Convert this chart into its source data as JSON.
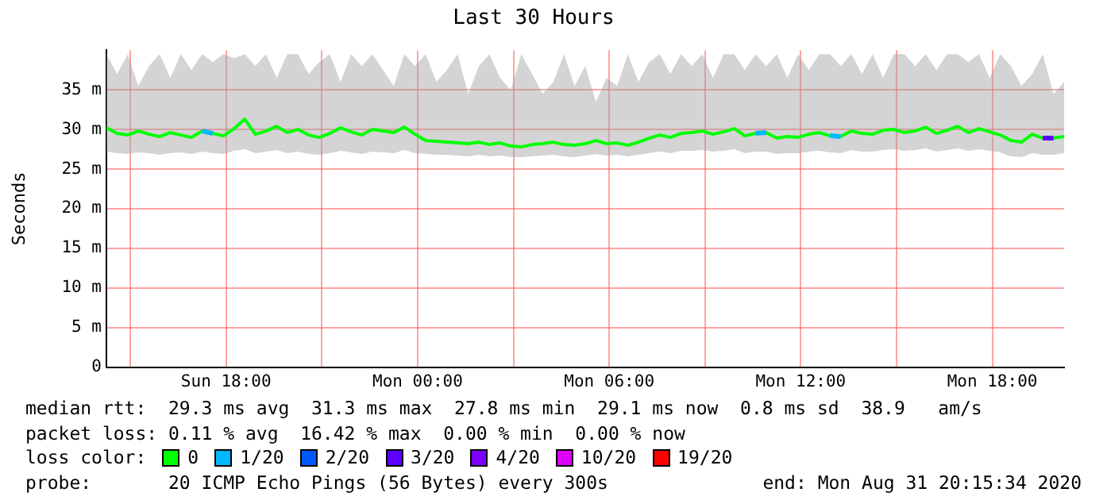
{
  "chart_data": {
    "type": "line",
    "title": "Last 30 Hours",
    "ylabel": "Seconds",
    "legend_title": "loss color:",
    "legend": "bottom",
    "grid": true,
    "marker": "none",
    "line_style": "solid",
    "ylim": [
      0,
      40
    ],
    "yticks": [
      {
        "value": 0,
        "label": "0"
      },
      {
        "value": 5,
        "label": "5 m"
      },
      {
        "value": 10,
        "label": "10 m"
      },
      {
        "value": 15,
        "label": "15 m"
      },
      {
        "value": 20,
        "label": "20 m"
      },
      {
        "value": 25,
        "label": "25 m"
      },
      {
        "value": 30,
        "label": "30 m"
      },
      {
        "value": 35,
        "label": "35 m"
      }
    ],
    "xlim": [
      "2020-08-30T14:15",
      "2020-08-31T20:15"
    ],
    "xticks": [
      {
        "value": "2020-08-30T15:00",
        "label": null
      },
      {
        "value": "2020-08-30T18:00",
        "label": "Sun 18:00"
      },
      {
        "value": "2020-08-30T21:00",
        "label": null
      },
      {
        "value": "2020-08-31T00:00",
        "label": "Mon 00:00"
      },
      {
        "value": "2020-08-31T03:00",
        "label": null
      },
      {
        "value": "2020-08-31T06:00",
        "label": "Mon 06:00"
      },
      {
        "value": "2020-08-31T09:00",
        "label": null
      },
      {
        "value": "2020-08-31T12:00",
        "label": "Mon 12:00"
      },
      {
        "value": "2020-08-31T15:00",
        "label": null
      },
      {
        "value": "2020-08-31T18:00",
        "label": "Mon 18:00"
      }
    ],
    "x": [
      "2020-08-30T14:15",
      "2020-08-30T14:35",
      "2020-08-30T14:55",
      "2020-08-30T15:15",
      "2020-08-30T15:35",
      "2020-08-30T15:55",
      "2020-08-30T16:15",
      "2020-08-30T16:35",
      "2020-08-30T16:55",
      "2020-08-30T17:15",
      "2020-08-30T17:35",
      "2020-08-30T17:55",
      "2020-08-30T18:15",
      "2020-08-30T18:35",
      "2020-08-30T18:55",
      "2020-08-30T19:15",
      "2020-08-30T19:35",
      "2020-08-30T19:55",
      "2020-08-30T20:15",
      "2020-08-30T20:35",
      "2020-08-30T20:55",
      "2020-08-30T21:15",
      "2020-08-30T21:35",
      "2020-08-30T21:55",
      "2020-08-30T22:15",
      "2020-08-30T22:35",
      "2020-08-30T22:55",
      "2020-08-30T23:15",
      "2020-08-30T23:35",
      "2020-08-30T23:55",
      "2020-08-31T00:15",
      "2020-08-31T00:35",
      "2020-08-31T00:55",
      "2020-08-31T01:15",
      "2020-08-31T01:35",
      "2020-08-31T01:55",
      "2020-08-31T02:15",
      "2020-08-31T02:35",
      "2020-08-31T02:55",
      "2020-08-31T03:15",
      "2020-08-31T03:35",
      "2020-08-31T03:55",
      "2020-08-31T04:15",
      "2020-08-31T04:35",
      "2020-08-31T04:55",
      "2020-08-31T05:15",
      "2020-08-31T05:35",
      "2020-08-31T05:55",
      "2020-08-31T06:15",
      "2020-08-31T06:35",
      "2020-08-31T06:55",
      "2020-08-31T07:15",
      "2020-08-31T07:35",
      "2020-08-31T07:55",
      "2020-08-31T08:15",
      "2020-08-31T08:35",
      "2020-08-31T08:55",
      "2020-08-31T09:15",
      "2020-08-31T09:35",
      "2020-08-31T09:55",
      "2020-08-31T10:15",
      "2020-08-31T10:35",
      "2020-08-31T10:55",
      "2020-08-31T11:15",
      "2020-08-31T11:35",
      "2020-08-31T11:55",
      "2020-08-31T12:15",
      "2020-08-31T12:35",
      "2020-08-31T12:55",
      "2020-08-31T13:15",
      "2020-08-31T13:35",
      "2020-08-31T13:55",
      "2020-08-31T14:15",
      "2020-08-31T14:35",
      "2020-08-31T14:55",
      "2020-08-31T15:15",
      "2020-08-31T15:35",
      "2020-08-31T15:55",
      "2020-08-31T16:15",
      "2020-08-31T16:35",
      "2020-08-31T16:55",
      "2020-08-31T17:15",
      "2020-08-31T17:35",
      "2020-08-31T17:55",
      "2020-08-31T18:15",
      "2020-08-31T18:35",
      "2020-08-31T18:55",
      "2020-08-31T19:15",
      "2020-08-31T19:35",
      "2020-08-31T19:55",
      "2020-08-31T20:15"
    ],
    "series": [
      {
        "name": "0",
        "color": "#00ff00",
        "values": [
          30.2,
          29.5,
          29.3,
          29.8,
          29.4,
          29.1,
          29.6,
          29.3,
          29.0,
          29.8,
          29.5,
          29.2,
          30.1,
          31.3,
          29.4,
          29.8,
          30.4,
          29.6,
          30.0,
          29.3,
          29.0,
          29.5,
          30.2,
          29.7,
          29.3,
          30.0,
          29.8,
          29.6,
          30.3,
          29.4,
          28.6,
          28.5,
          28.4,
          28.3,
          28.2,
          28.4,
          28.1,
          28.3,
          27.9,
          27.8,
          28.1,
          28.2,
          28.4,
          28.1,
          28.0,
          28.2,
          28.6,
          28.2,
          28.3,
          28.0,
          28.4,
          28.9,
          29.3,
          29.0,
          29.5,
          29.6,
          29.8,
          29.4,
          29.7,
          30.1,
          29.2,
          29.5,
          29.6,
          28.9,
          29.1,
          29.0,
          29.4,
          29.6,
          29.2,
          29.1,
          29.8,
          29.5,
          29.4,
          29.9,
          30.0,
          29.6,
          29.8,
          30.3,
          29.5,
          29.9,
          30.4,
          29.6,
          30.1,
          29.7,
          29.3,
          28.6,
          28.4,
          29.4,
          28.9,
          28.9,
          29.1
        ],
        "lower": [
          27.2,
          27.0,
          26.9,
          27.1,
          27.0,
          26.8,
          27.0,
          27.1,
          26.9,
          27.2,
          27.0,
          26.9,
          27.3,
          27.5,
          27.0,
          27.2,
          27.4,
          27.0,
          27.2,
          26.9,
          26.8,
          27.0,
          27.3,
          27.1,
          26.9,
          27.2,
          27.1,
          27.0,
          27.4,
          27.0,
          26.9,
          26.8,
          26.8,
          26.7,
          26.6,
          26.8,
          26.6,
          26.7,
          26.5,
          26.5,
          26.6,
          26.7,
          26.8,
          26.6,
          26.5,
          26.7,
          26.9,
          26.7,
          26.8,
          26.6,
          26.8,
          27.0,
          27.2,
          27.0,
          27.3,
          27.3,
          27.4,
          27.2,
          27.3,
          27.5,
          27.0,
          27.2,
          27.2,
          26.9,
          27.0,
          27.0,
          27.2,
          27.3,
          27.1,
          27.0,
          27.4,
          27.2,
          27.2,
          27.4,
          27.5,
          27.3,
          27.4,
          27.6,
          27.2,
          27.4,
          27.6,
          27.3,
          27.5,
          27.3,
          27.1,
          26.6,
          26.5,
          27.0,
          26.8,
          26.8,
          27.0
        ],
        "upper": [
          39.5,
          37.0,
          39.5,
          35.5,
          38.0,
          39.5,
          36.5,
          39.5,
          37.5,
          39.5,
          38.5,
          39.5,
          39.0,
          39.5,
          38.0,
          39.5,
          36.5,
          39.5,
          39.5,
          37.0,
          38.5,
          39.5,
          36.0,
          39.5,
          38.0,
          39.5,
          37.5,
          35.5,
          39.5,
          38.0,
          39.5,
          36.0,
          37.5,
          39.5,
          34.5,
          38.0,
          39.5,
          36.5,
          35.0,
          39.5,
          37.0,
          34.5,
          36.0,
          39.5,
          35.5,
          38.0,
          33.5,
          36.5,
          35.5,
          39.5,
          36.0,
          38.5,
          39.5,
          37.0,
          39.5,
          38.0,
          39.5,
          36.5,
          39.5,
          39.5,
          37.5,
          39.5,
          38.0,
          39.5,
          36.5,
          39.5,
          37.5,
          39.5,
          39.5,
          38.0,
          39.5,
          37.0,
          39.5,
          36.5,
          39.5,
          39.5,
          38.0,
          39.5,
          37.5,
          39.5,
          39.5,
          38.5,
          39.5,
          36.5,
          39.5,
          38.0,
          35.5,
          37.0,
          39.5,
          34.5,
          36.0
        ]
      },
      {
        "name": "1/20",
        "color": "#00b8ff",
        "values": [
          null,
          null,
          null,
          null,
          null,
          null,
          null,
          null,
          null,
          29.8,
          29.5,
          null,
          null,
          null,
          null,
          null,
          null,
          null,
          null,
          null,
          null,
          null,
          null,
          null,
          null,
          null,
          null,
          null,
          null,
          null,
          null,
          null,
          null,
          null,
          null,
          null,
          null,
          null,
          null,
          null,
          null,
          null,
          null,
          null,
          null,
          null,
          null,
          null,
          null,
          null,
          null,
          null,
          null,
          null,
          null,
          null,
          null,
          null,
          null,
          null,
          null,
          29.5,
          29.6,
          null,
          null,
          null,
          null,
          null,
          29.2,
          29.1,
          null,
          null,
          null,
          null,
          null,
          null,
          null,
          null,
          null,
          null,
          null,
          null,
          null,
          null,
          null,
          null,
          null,
          null,
          null,
          null,
          null
        ]
      },
      {
        "name": "2/20",
        "color": "#0059ff",
        "values": [
          null,
          null,
          null,
          null,
          null,
          null,
          null,
          null,
          null,
          null,
          null,
          null,
          null,
          null,
          null,
          null,
          null,
          null,
          null,
          null,
          null,
          null,
          null,
          null,
          null,
          null,
          null,
          null,
          null,
          null,
          null,
          null,
          null,
          null,
          null,
          null,
          null,
          null,
          null,
          null,
          null,
          null,
          null,
          null,
          null,
          null,
          null,
          null,
          null,
          null,
          null,
          null,
          null,
          null,
          null,
          null,
          null,
          null,
          null,
          null,
          null,
          null,
          null,
          null,
          null,
          null,
          null,
          null,
          null,
          null,
          null,
          null,
          null,
          null,
          null,
          null,
          null,
          null,
          null,
          null,
          null,
          null,
          null,
          null,
          null,
          null,
          null,
          null,
          null,
          null,
          null
        ]
      },
      {
        "name": "3/20",
        "color": "#5e00ff",
        "values": [
          null,
          null,
          null,
          null,
          null,
          null,
          null,
          null,
          null,
          null,
          null,
          null,
          null,
          null,
          null,
          null,
          null,
          null,
          null,
          null,
          null,
          null,
          null,
          null,
          null,
          null,
          null,
          null,
          null,
          null,
          null,
          null,
          null,
          null,
          null,
          null,
          null,
          null,
          null,
          null,
          null,
          null,
          null,
          null,
          null,
          null,
          null,
          null,
          null,
          null,
          null,
          null,
          null,
          null,
          null,
          null,
          null,
          null,
          null,
          null,
          null,
          null,
          null,
          null,
          null,
          null,
          null,
          null,
          null,
          null,
          null,
          null,
          null,
          null,
          null,
          null,
          null,
          null,
          null,
          null,
          null,
          null,
          null,
          null,
          null,
          null,
          null,
          null,
          28.9,
          28.9,
          null
        ]
      },
      {
        "name": "4/20",
        "color": "#7e00ff",
        "values": [
          null,
          null,
          null,
          null,
          null,
          null,
          null,
          null,
          null,
          null,
          null,
          null,
          null,
          null,
          null,
          null,
          null,
          null,
          null,
          null,
          null,
          null,
          null,
          null,
          null,
          null,
          null,
          null,
          null,
          null,
          null,
          null,
          null,
          null,
          null,
          null,
          null,
          null,
          null,
          null,
          null,
          null,
          null,
          null,
          null,
          null,
          null,
          null,
          null,
          null,
          null,
          null,
          null,
          null,
          null,
          null,
          null,
          null,
          null,
          null,
          null,
          null,
          null,
          null,
          null,
          null,
          null,
          null,
          null,
          null,
          null,
          null,
          null,
          null,
          null,
          null,
          null,
          null,
          null,
          null,
          null,
          null,
          null,
          null,
          null,
          null,
          null,
          null,
          null,
          null,
          null
        ]
      },
      {
        "name": "10/20",
        "color": "#dd00ff",
        "values": [
          null,
          null,
          null,
          null,
          null,
          null,
          null,
          null,
          null,
          null,
          null,
          null,
          null,
          null,
          null,
          null,
          null,
          null,
          null,
          null,
          null,
          null,
          null,
          null,
          null,
          null,
          null,
          null,
          null,
          null,
          null,
          null,
          null,
          null,
          null,
          null,
          null,
          null,
          null,
          null,
          null,
          null,
          null,
          null,
          null,
          null,
          null,
          null,
          null,
          null,
          null,
          null,
          null,
          null,
          null,
          null,
          null,
          null,
          null,
          null,
          null,
          null,
          null,
          null,
          null,
          null,
          null,
          null,
          null,
          null,
          null,
          null,
          null,
          null,
          null,
          null,
          null,
          null,
          null,
          null,
          null,
          null,
          null,
          null,
          null,
          null,
          null,
          null,
          null,
          null,
          null
        ]
      },
      {
        "name": "19/20",
        "color": "#ff0000",
        "values": [
          null,
          null,
          null,
          null,
          null,
          null,
          null,
          null,
          null,
          null,
          null,
          null,
          null,
          null,
          null,
          null,
          null,
          null,
          null,
          null,
          null,
          null,
          null,
          null,
          null,
          null,
          null,
          null,
          null,
          null,
          null,
          null,
          null,
          null,
          null,
          null,
          null,
          null,
          null,
          null,
          null,
          null,
          null,
          null,
          null,
          null,
          null,
          null,
          null,
          null,
          null,
          null,
          null,
          null,
          null,
          null,
          null,
          null,
          null,
          null,
          null,
          null,
          null,
          null,
          null,
          null,
          null,
          null,
          null,
          null,
          null,
          null,
          null,
          null,
          null,
          null,
          null,
          null,
          null,
          null,
          null,
          null,
          null,
          null,
          null,
          null,
          null,
          null,
          null,
          null,
          null
        ]
      }
    ],
    "annotations": [
      "median rtt:  29.3 ms avg  31.3 ms max  27.8 ms min  29.1 ms now  0.8 ms sd  38.9   am/s",
      "packet loss: 0.11 % avg  16.42 % max  0.00 % min  0.00 % now",
      "probe:       20 ICMP Echo Pings (56 Bytes) every 300s",
      "end: Mon Aug 31 20:15:34 2020"
    ]
  }
}
